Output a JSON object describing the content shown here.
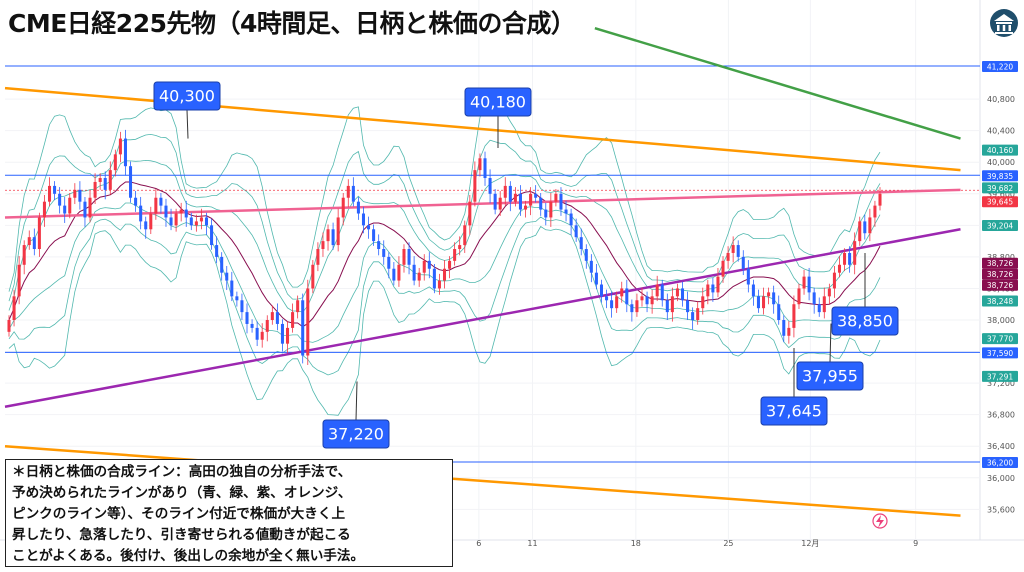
{
  "title": "CME日経225先物（4時間足、日柄と株価の合成）",
  "note": {
    "lines": [
      "＊日柄と株価の合成ライン：高田の独自の分析手法で、",
      "予め決められたラインがあり（青、緑、紫、オレンジ、",
      "ピンクのライン等）、そのライン付近で株価が大きく上",
      "昇したり、急落したり、引き寄せられる値動きが起こる",
      "ことがよくある。後付け、後出しの余地が全く無い手法。"
    ]
  },
  "chart_data": {
    "type": "candlestick",
    "title": "CME日経225先物（4時間足、日柄と株価の合成）",
    "price_axis": {
      "min": 35400,
      "max": 41600,
      "ticks": [
        35600,
        36000,
        36400,
        36800,
        37200,
        37600,
        38000,
        38400,
        38800,
        39200,
        39600,
        40000,
        40400,
        40800
      ],
      "tick_labels": [
        "35,600",
        "36,000",
        "36,400",
        "36,800",
        "37,200",
        "37,600",
        "38,000",
        "38,400",
        "38,800",
        "39,200",
        "39,600",
        "40,000",
        "40,400",
        "40,800"
      ]
    },
    "time_axis": {
      "labels": [
        "6",
        "11",
        "18",
        "25",
        "12月",
        "9"
      ]
    },
    "price_badges": [
      {
        "label": "41,220",
        "value": 41220,
        "color": "#2962ff"
      },
      {
        "label": "40,160",
        "value": 40160,
        "color": "#26a69a"
      },
      {
        "label": "39,835",
        "value": 39835,
        "color": "#2962ff"
      },
      {
        "label": "39,682",
        "value": 39682,
        "color": "#26a69a"
      },
      {
        "label": "39,645",
        "value": 39645,
        "color": "#f23645"
      },
      {
        "label": "39,204",
        "value": 39204,
        "color": "#26a69a"
      },
      {
        "label": "38,726",
        "value": 38726,
        "color": "#880e4f"
      },
      {
        "label": "38,726",
        "value": 38726,
        "color": "#880e4f"
      },
      {
        "label": "38,726",
        "value": 38726,
        "color": "#880e4f"
      },
      {
        "label": "38,248",
        "value": 38248,
        "color": "#26a69a"
      },
      {
        "label": "37,770",
        "value": 37770,
        "color": "#26a69a"
      },
      {
        "label": "37,590",
        "value": 37590,
        "color": "#2962ff"
      },
      {
        "label": "37,291",
        "value": 37291,
        "color": "#26a69a"
      },
      {
        "label": "36,200",
        "value": 36200,
        "color": "#2962ff"
      }
    ],
    "horizontal_lines": [
      {
        "value": 41220,
        "color": "#2962ff"
      },
      {
        "value": 39835,
        "color": "#2962ff"
      },
      {
        "value": 37590,
        "color": "#2962ff"
      },
      {
        "value": 36200,
        "color": "#2962ff"
      },
      {
        "value": 39645,
        "color": "#f23645",
        "dashed": true
      }
    ],
    "trend_lines": [
      {
        "color": "#43a047",
        "from": [
          0.605,
          41700
        ],
        "to": [
          0.98,
          40300
        ]
      },
      {
        "color": "#ff9800",
        "from": [
          0.0,
          40940
        ],
        "to": [
          0.98,
          39900
        ]
      },
      {
        "color": "#f06292",
        "from": [
          0.0,
          39300
        ],
        "to": [
          0.98,
          39650
        ]
      },
      {
        "color": "#9c27b0",
        "from": [
          0.0,
          36900
        ],
        "to": [
          0.98,
          39150
        ]
      },
      {
        "color": "#ff9800",
        "from": [
          0.0,
          36400
        ],
        "to": [
          0.98,
          35520
        ]
      }
    ],
    "annotations": [
      {
        "label": "40,300",
        "value": 40300
      },
      {
        "label": "40,180",
        "value": 40180
      },
      {
        "label": "37,220",
        "value": 37220
      },
      {
        "label": "37,645",
        "value": 37645
      },
      {
        "label": "37,955",
        "value": 37955
      },
      {
        "label": "38,850",
        "value": 38850
      }
    ],
    "close_series": [
      38000,
      38300,
      38700,
      38950,
      39050,
      38900,
      39300,
      39500,
      39700,
      39600,
      39450,
      39350,
      39550,
      39650,
      39500,
      39300,
      39550,
      39750,
      39800,
      39650,
      39900,
      40100,
      40300,
      39950,
      39550,
      39450,
      39250,
      39150,
      39350,
      39550,
      39450,
      39300,
      39200,
      39350,
      39400,
      39300,
      39200,
      39250,
      39300,
      39200,
      38950,
      38800,
      38600,
      38500,
      38300,
      38250,
      38100,
      37950,
      37900,
      37750,
      37850,
      38000,
      38100,
      37950,
      37700,
      37900,
      38100,
      38250,
      37550,
      38400,
      38700,
      38900,
      39000,
      39150,
      38950,
      39300,
      39550,
      39700,
      39500,
      39350,
      39200,
      39150,
      39000,
      38900,
      38800,
      38650,
      38500,
      38700,
      38900,
      38700,
      38500,
      38600,
      38750,
      38650,
      38400,
      38500,
      38650,
      38750,
      38900,
      38950,
      39200,
      39500,
      39900,
      40050,
      39800,
      39600,
      39400,
      39550,
      39700,
      39500,
      39600,
      39400,
      39450,
      39600,
      39550,
      39400,
      39300,
      39500,
      39600,
      39400,
      39350,
      39200,
      39050,
      38900,
      38750,
      38600,
      38450,
      38300,
      38250,
      38150,
      38300,
      38400,
      38200,
      38100,
      38250,
      38300,
      38200,
      38300,
      38450,
      38250,
      38100,
      38300,
      38400,
      38250,
      38100,
      38000,
      38150,
      38300,
      38450,
      38350,
      38550,
      38750,
      38850,
      38950,
      38800,
      38650,
      38450,
      38300,
      38150,
      38300,
      38350,
      38200,
      38000,
      37800,
      37900,
      38200,
      38400,
      38550,
      38350,
      38200,
      38100,
      38300,
      38400,
      38600,
      38700,
      38850,
      38700,
      39000,
      39250,
      39100,
      39300,
      39450,
      39600
    ]
  }
}
